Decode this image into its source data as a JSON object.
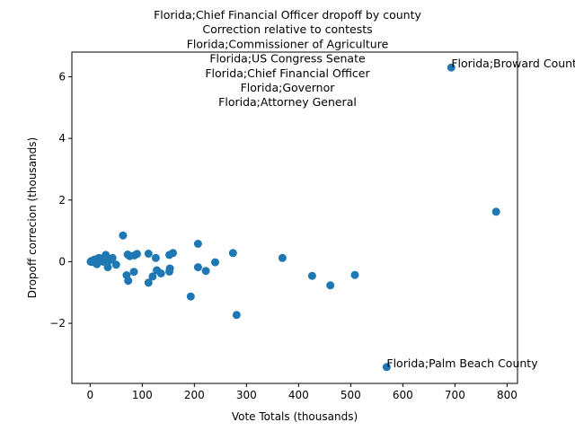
{
  "chart_data": {
    "type": "scatter",
    "title_lines": [
      "Florida;Chief Financial Officer dropoff by county",
      "Correction relative to contests",
      "Florida;Commissioner of Agriculture",
      "Florida;US Congress Senate",
      "Florida;Chief Financial Officer",
      "Florida;Governor",
      "Florida;Attorney General"
    ],
    "xlabel": "Vote Totals (thousands)",
    "ylabel": "Dropoff correcion (thousands)",
    "xlim": [
      -35,
      820
    ],
    "ylim": [
      -3.95,
      6.8
    ],
    "xticks": [
      0,
      100,
      200,
      300,
      400,
      500,
      600,
      700,
      800
    ],
    "yticks": [
      -2,
      0,
      2,
      4,
      6
    ],
    "grid": false,
    "marker_color": "#1f77b4",
    "annotations": [
      {
        "text": "Florida;Broward County",
        "x": 693,
        "y": 6.3
      },
      {
        "text": "Florida;Palm Beach County",
        "x": 569,
        "y": -3.42
      }
    ],
    "points": [
      [
        693,
        6.3
      ],
      [
        779,
        1.62
      ],
      [
        569,
        -3.42
      ],
      [
        281,
        -1.73
      ],
      [
        193,
        -1.13
      ],
      [
        461,
        -0.77
      ],
      [
        508,
        -0.43
      ],
      [
        426,
        -0.46
      ],
      [
        369,
        0.12
      ],
      [
        274,
        0.28
      ],
      [
        240,
        -0.02
      ],
      [
        222,
        -0.3
      ],
      [
        207,
        0.58
      ],
      [
        207,
        -0.18
      ],
      [
        159,
        0.28
      ],
      [
        152,
        0.22
      ],
      [
        153,
        -0.22
      ],
      [
        152,
        -0.32
      ],
      [
        136,
        -0.38
      ],
      [
        128,
        -0.28
      ],
      [
        126,
        0.12
      ],
      [
        120,
        -0.48
      ],
      [
        112,
        0.26
      ],
      [
        112,
        -0.68
      ],
      [
        90,
        0.25
      ],
      [
        85,
        0.2
      ],
      [
        84,
        -0.33
      ],
      [
        76,
        0.18
      ],
      [
        72,
        0.23
      ],
      [
        73,
        -0.62
      ],
      [
        70,
        -0.44
      ],
      [
        63,
        0.85
      ],
      [
        50,
        -0.1
      ],
      [
        43,
        0.12
      ],
      [
        38,
        0.05
      ],
      [
        34,
        -0.18
      ],
      [
        30,
        0.22
      ],
      [
        28,
        0.08
      ],
      [
        25,
        0.0
      ],
      [
        20,
        0.1
      ],
      [
        17,
        0.12
      ],
      [
        15,
        0.05
      ],
      [
        13,
        -0.08
      ],
      [
        11,
        0.08
      ],
      [
        9,
        -0.02
      ],
      [
        7,
        0.06
      ],
      [
        5,
        0.03
      ],
      [
        3,
        -0.01
      ],
      [
        2,
        0.02
      ],
      [
        1,
        0.0
      ]
    ]
  }
}
